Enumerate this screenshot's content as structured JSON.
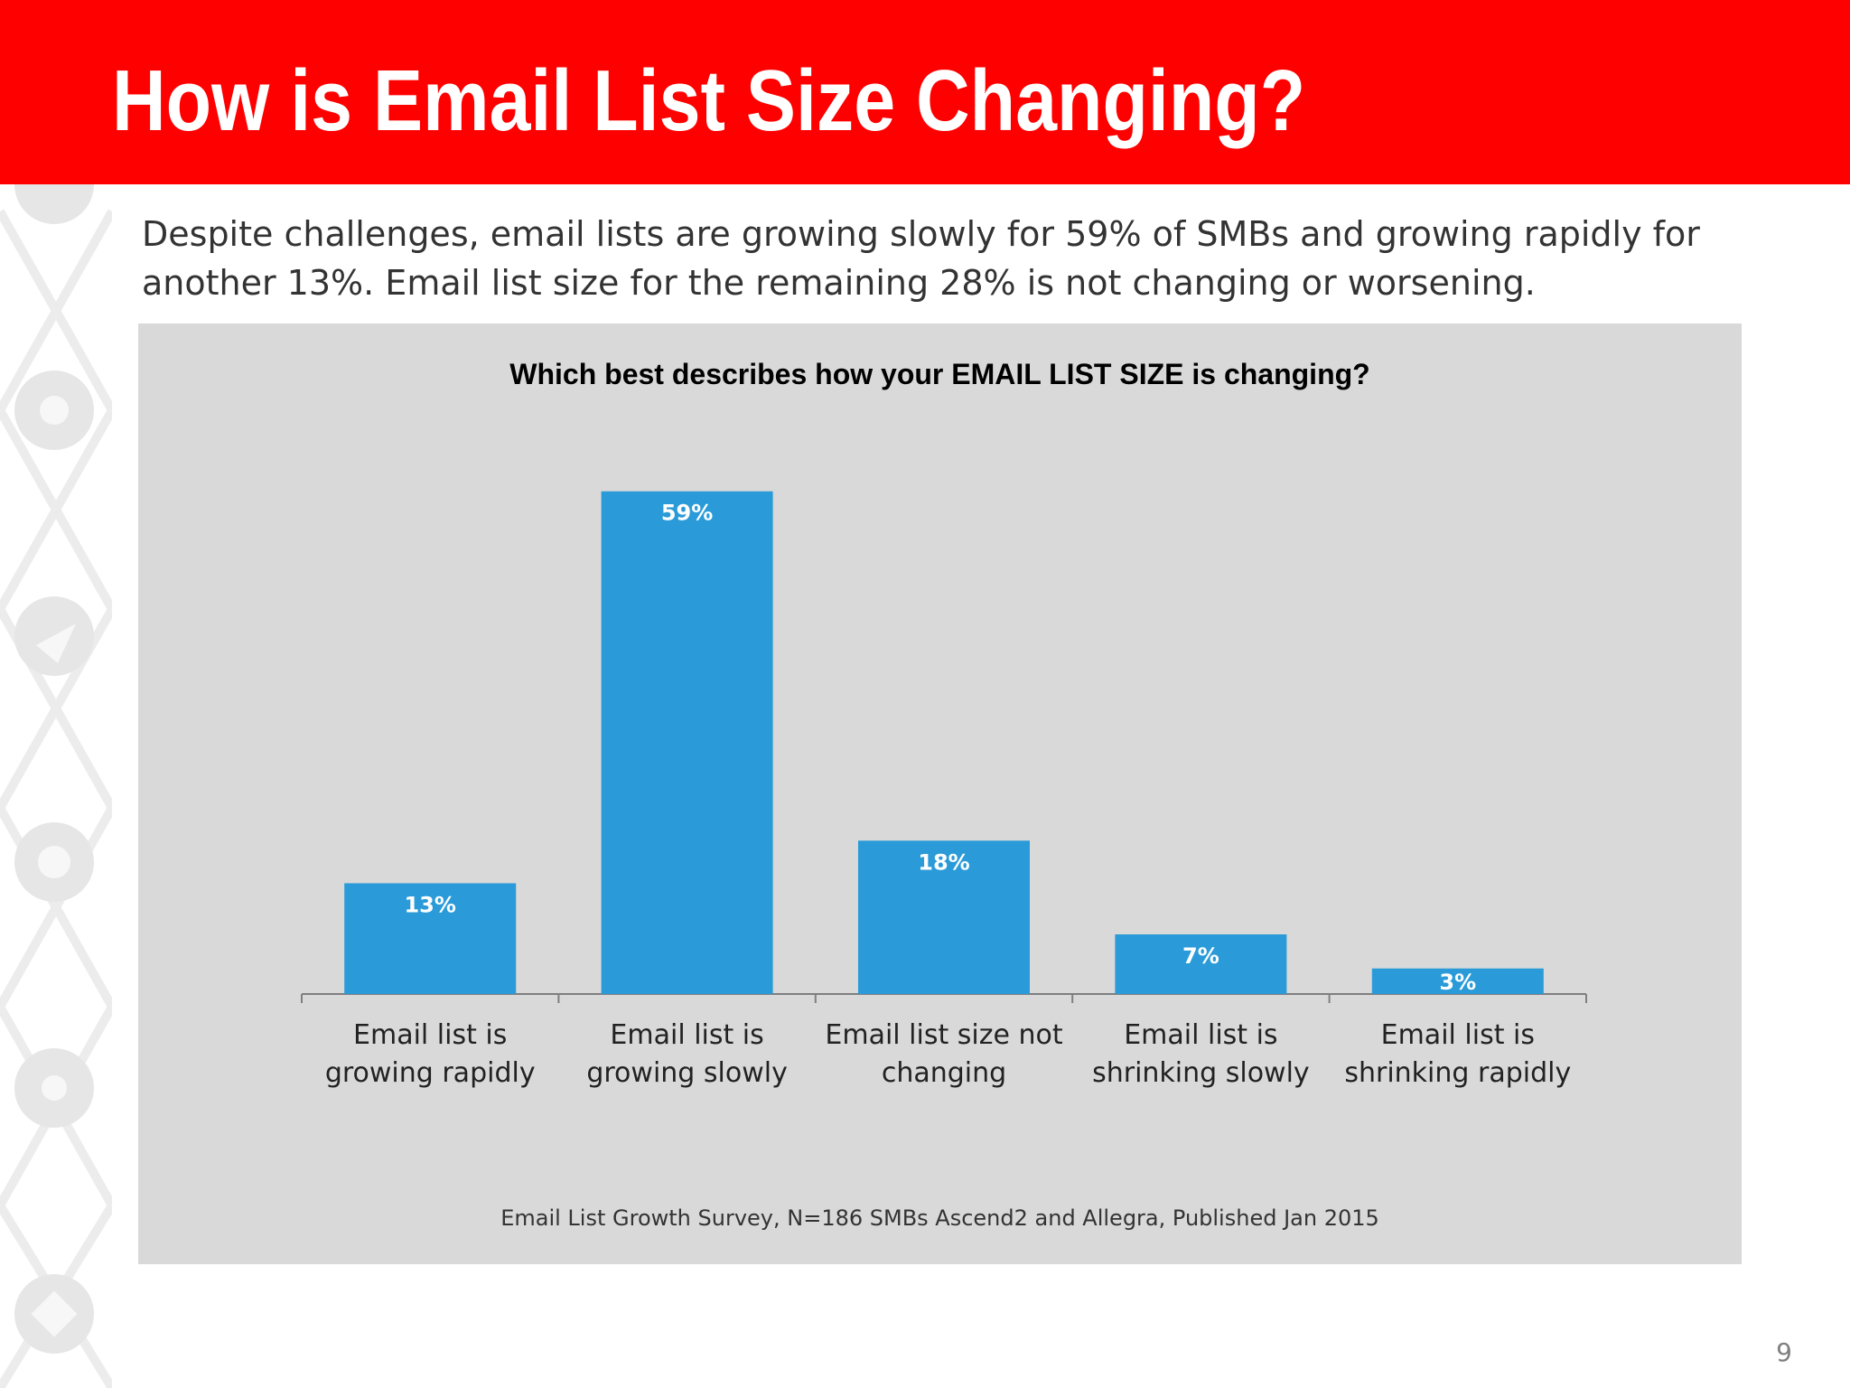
{
  "slide": {
    "title": "How is Email List Size Changing?",
    "subtitle": "Despite challenges, email lists are growing slowly for 59% of SMBs and growing rapidly for another 13%. Email list size for the remaining 28% is not changing or worsening.",
    "page_number": "9",
    "source": "Email List Growth Survey, N=186 SMBs Ascend2 and Allegra, Published Jan 2015"
  },
  "colors": {
    "header": "#ff0000",
    "bar": "#2a9bd8",
    "panel": "#d9d9d9"
  },
  "chart_data": {
    "type": "bar",
    "title": "Which best describes how your EMAIL LIST SIZE is changing?",
    "categories": [
      [
        "Email list is",
        "growing rapidly"
      ],
      [
        "Email list is",
        "growing slowly"
      ],
      [
        "Email list size not",
        "changing"
      ],
      [
        "Email list is",
        "shrinking slowly"
      ],
      [
        "Email list is",
        "shrinking rapidly"
      ]
    ],
    "values": [
      13,
      59,
      18,
      7,
      3
    ],
    "value_labels": [
      "13%",
      "59%",
      "18%",
      "7%",
      "3%"
    ],
    "unit": "%",
    "ylim": [
      0,
      70
    ],
    "grid": false,
    "legend": "none"
  }
}
